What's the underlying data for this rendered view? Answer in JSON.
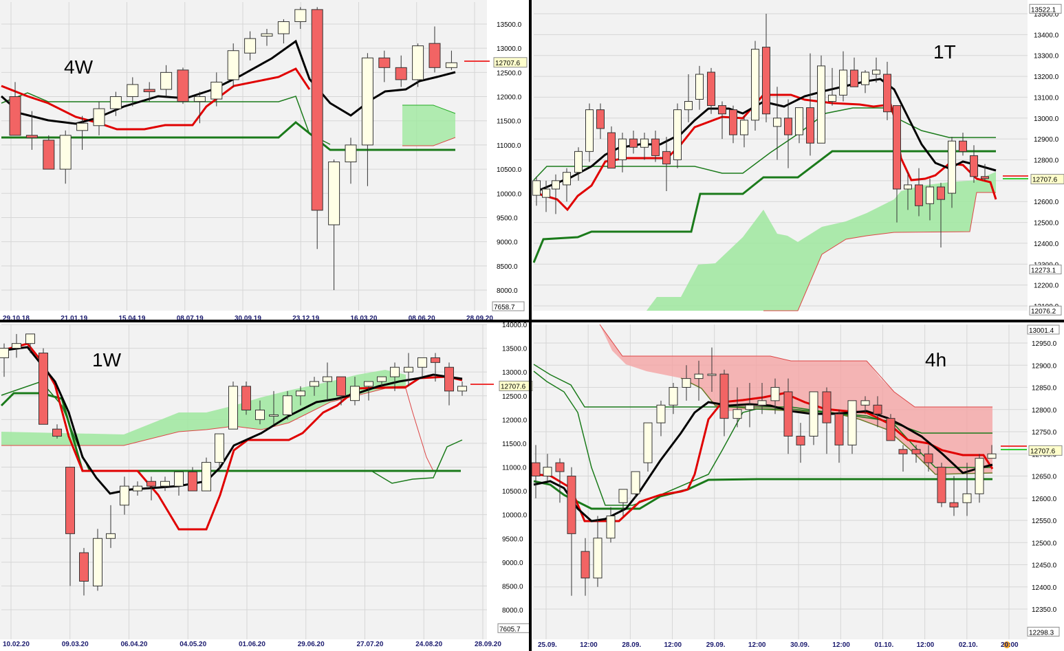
{
  "chart_data": [
    {
      "type": "candlestick",
      "title": "4W",
      "x_ticks": [
        "29.10.18",
        "21.01.19",
        "15.04.19",
        "08.07.19",
        "30.09.19",
        "23.12.19",
        "16.03.20",
        "08.06.20",
        "28.09.20"
      ],
      "y_ticks": [
        "13500.0",
        "13000.0",
        "12500.0",
        "12000.0",
        "11500.0",
        "11000.0",
        "10500.0",
        "10000.0",
        "9500.0",
        "9000.0",
        "8500.0",
        "8000.0"
      ],
      "ylim": [
        7600,
        13900
      ],
      "price_tag": "12707.6",
      "low_tag": "7658.7",
      "candles": [
        {
          "o": 12000,
          "h": 12300,
          "l": 11200,
          "c": 11200
        },
        {
          "o": 11200,
          "h": 11700,
          "l": 10900,
          "c": 11150
        },
        {
          "o": 11100,
          "h": 11200,
          "l": 10500,
          "c": 10500
        },
        {
          "o": 10500,
          "h": 11300,
          "l": 10200,
          "c": 11200
        },
        {
          "o": 11300,
          "h": 11600,
          "l": 10900,
          "c": 11450
        },
        {
          "o": 11400,
          "h": 11900,
          "l": 11200,
          "c": 11750
        },
        {
          "o": 11750,
          "h": 12100,
          "l": 11600,
          "c": 12000
        },
        {
          "o": 12000,
          "h": 12400,
          "l": 11800,
          "c": 12250
        },
        {
          "o": 12150,
          "h": 12300,
          "l": 11900,
          "c": 12100
        },
        {
          "o": 12150,
          "h": 12650,
          "l": 12000,
          "c": 12500
        },
        {
          "o": 12550,
          "h": 12600,
          "l": 11850,
          "c": 11900
        },
        {
          "o": 11900,
          "h": 12100,
          "l": 11450,
          "c": 12000
        },
        {
          "o": 11950,
          "h": 12500,
          "l": 11800,
          "c": 12300
        },
        {
          "o": 12350,
          "h": 13100,
          "l": 12200,
          "c": 12950
        },
        {
          "o": 12900,
          "h": 13350,
          "l": 12750,
          "c": 13200
        },
        {
          "o": 13250,
          "h": 13400,
          "l": 13050,
          "c": 13300
        },
        {
          "o": 13300,
          "h": 13600,
          "l": 13100,
          "c": 13550
        },
        {
          "o": 13550,
          "h": 13850,
          "l": 13400,
          "c": 13800
        },
        {
          "o": 13800,
          "h": 13850,
          "l": 8850,
          "c": 9650
        },
        {
          "o": 9350,
          "h": 10700,
          "l": 8000,
          "c": 10650
        },
        {
          "o": 10650,
          "h": 11150,
          "l": 10200,
          "c": 11000
        },
        {
          "o": 11000,
          "h": 12900,
          "l": 10150,
          "c": 12800
        },
        {
          "o": 12800,
          "h": 12950,
          "l": 12300,
          "c": 12600
        },
        {
          "o": 12600,
          "h": 12850,
          "l": 12200,
          "c": 12350
        },
        {
          "o": 12350,
          "h": 13100,
          "l": 12200,
          "c": 13050
        },
        {
          "o": 13100,
          "h": 13450,
          "l": 12500,
          "c": 12600
        },
        {
          "o": 12600,
          "h": 12950,
          "l": 12550,
          "c": 12700
        }
      ]
    },
    {
      "type": "candlestick",
      "title": "1T",
      "x_ticks": [],
      "y_ticks": [
        "13500.0",
        "13400.0",
        "13300.0",
        "13200.0",
        "13100.0",
        "13000.0",
        "12900.0",
        "12800.0",
        "12700.0",
        "12600.0",
        "12500.0",
        "12400.0",
        "12300.0",
        "12200.0",
        "12100.0"
      ],
      "ylim": [
        12070,
        13550
      ],
      "price_tag": "12707.6",
      "high_tag": "13522.1",
      "low_tag": "12076.2",
      "mid_tag": "12273.1"
    },
    {
      "type": "candlestick",
      "title": "1W",
      "x_ticks": [
        "10.02.20",
        "09.03.20",
        "06.04.20",
        "04.05.20",
        "01.06.20",
        "29.06.20",
        "27.07.20",
        "24.08.20",
        "28.09.20"
      ],
      "y_ticks": [
        "14000.0",
        "13500.0",
        "13000.0",
        "12500.0",
        "12000.0",
        "11500.0",
        "11000.0",
        "10500.0",
        "10000.0",
        "9500.0",
        "9000.0",
        "8500.0",
        "8000.0"
      ],
      "ylim": [
        7550,
        14000
      ],
      "price_tag": "12707.6",
      "low_tag": "7605.7"
    },
    {
      "type": "candlestick",
      "title": "4h",
      "x_ticks": [
        "25.09.",
        "12:00",
        "28.09.",
        "12:00",
        "29.09.",
        "12:00",
        "30.09.",
        "12:00",
        "01.10.",
        "12:00",
        "02.10.",
        "20:00"
      ],
      "y_ticks": [
        "12950.0",
        "12900.0",
        "12850.0",
        "12800.0",
        "12750.0",
        "12700.0",
        "12650.0",
        "12600.0",
        "12550.0",
        "12500.0",
        "12450.0",
        "12400.0",
        "12350.0"
      ],
      "ylim": [
        12290,
        13010
      ],
      "price_tag": "12707.6",
      "high_tag": "13001.4",
      "low_tag": "12298.3"
    }
  ]
}
